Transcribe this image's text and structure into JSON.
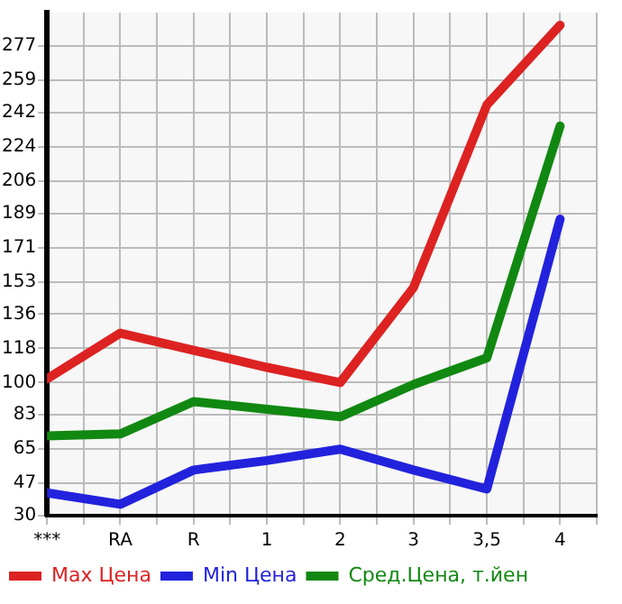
{
  "chart_data": {
    "type": "line",
    "categories": [
      "***",
      "RA",
      "R",
      "1",
      "2",
      "3",
      "3,5",
      "4"
    ],
    "series": [
      {
        "name": "Max Цена",
        "color": "#dd2222",
        "values": [
          102,
          126,
          117,
          108,
          100,
          150,
          246,
          288
        ]
      },
      {
        "name": "Min Цена",
        "color": "#2222dd",
        "values": [
          42,
          36,
          54,
          59,
          65,
          54,
          44,
          186
        ]
      },
      {
        "name": "Сред.Цена, т.йен",
        "color": "#118811",
        "values": [
          72,
          73,
          90,
          86,
          82,
          99,
          113,
          235
        ]
      }
    ],
    "ylim": [
      30,
      294.6
    ],
    "yticks": [
      30,
      47,
      65,
      83,
      100,
      118,
      136,
      153,
      171,
      189,
      206,
      224,
      242,
      259,
      277
    ],
    "grid": true,
    "legend": "bottom",
    "marker": "none",
    "line_style": "solid"
  }
}
